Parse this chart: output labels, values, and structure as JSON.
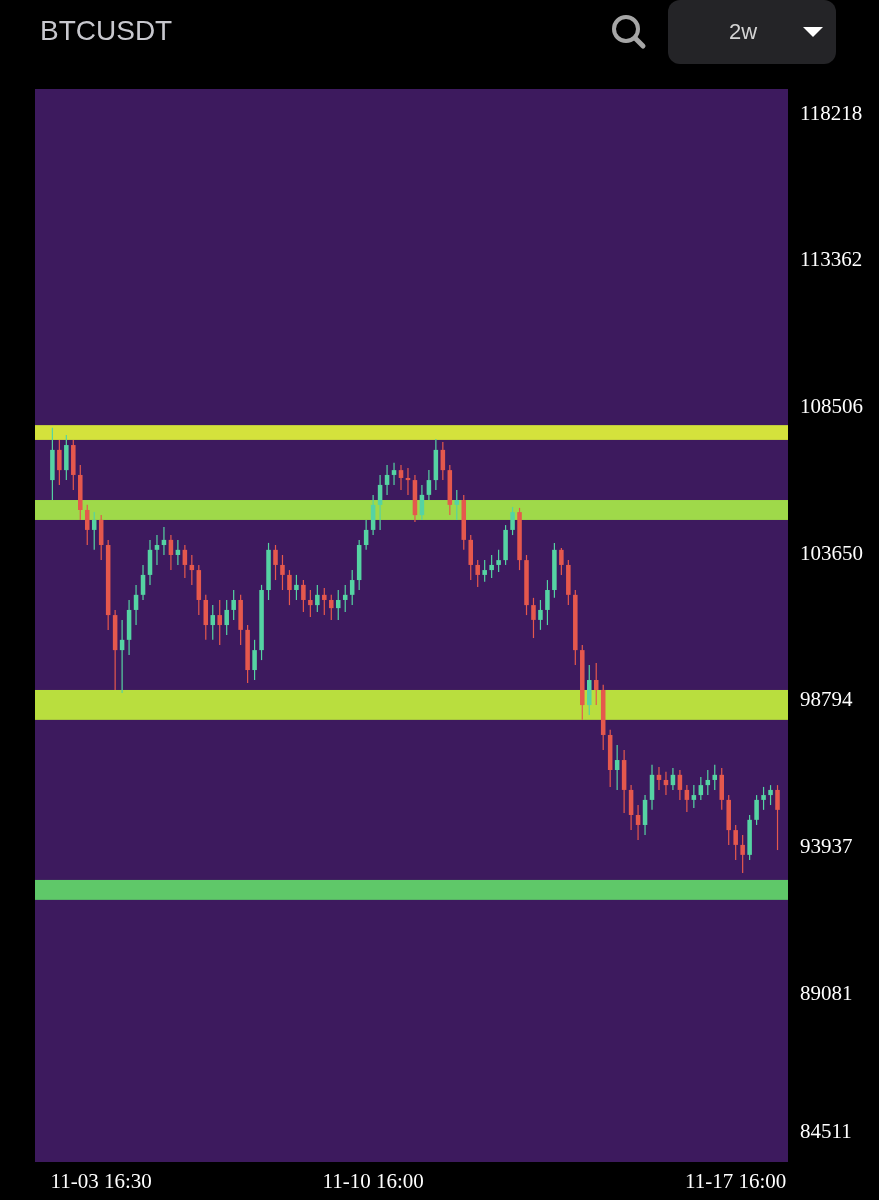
{
  "chart_data": {
    "type": "candlestick",
    "title": "BTCUSDT",
    "annotations": [
      "2w"
    ],
    "categories": [
      null,
      null,
      null,
      null,
      null,
      null,
      null,
      "11-03 16:30",
      null,
      null,
      null,
      null,
      null,
      null,
      null,
      null,
      null,
      null,
      null,
      null,
      null,
      null,
      null,
      null,
      null,
      null,
      null,
      null,
      null,
      null,
      null,
      null,
      null,
      null,
      null,
      null,
      null,
      null,
      null,
      null,
      null,
      null,
      null,
      null,
      null,
      null,
      "11-10 16:00",
      null,
      null,
      null,
      null,
      null,
      null,
      null,
      null,
      null,
      null,
      null,
      null,
      null,
      null,
      null,
      null,
      null,
      null,
      null,
      null,
      null,
      null,
      null,
      null,
      null,
      null,
      null,
      null,
      null,
      null,
      null,
      null,
      null,
      null,
      null,
      null,
      null,
      null,
      null,
      null,
      null,
      null,
      null,
      null,
      null,
      null,
      null,
      null,
      null,
      null,
      null,
      "11-17 16:00",
      null,
      null,
      null,
      null,
      null,
      null
    ],
    "ohlc": [
      [
        106130,
        107860,
        105470,
        107130
      ],
      [
        107130,
        107460,
        105970,
        106460
      ],
      [
        106460,
        107620,
        106130,
        107290
      ],
      [
        107290,
        107460,
        105800,
        106300
      ],
      [
        106300,
        106630,
        104810,
        105140
      ],
      [
        105140,
        105310,
        103980,
        104480
      ],
      [
        104480,
        105070,
        103820,
        104810
      ],
      [
        104810,
        104970,
        103480,
        103980
      ],
      [
        103980,
        104150,
        101170,
        101660
      ],
      [
        101660,
        101830,
        99180,
        100500
      ],
      [
        100500,
        101500,
        99080,
        100840
      ],
      [
        100840,
        102160,
        100340,
        101830
      ],
      [
        101830,
        102660,
        101330,
        102330
      ],
      [
        102330,
        103320,
        102160,
        102990
      ],
      [
        102990,
        104150,
        102660,
        103820
      ],
      [
        103820,
        104310,
        103320,
        103980
      ],
      [
        103980,
        104580,
        103650,
        104150
      ],
      [
        104150,
        104310,
        103150,
        103650
      ],
      [
        103650,
        104150,
        103320,
        103820
      ],
      [
        103820,
        103980,
        102890,
        103320
      ],
      [
        103320,
        103650,
        102660,
        103150
      ],
      [
        103150,
        103320,
        101660,
        102160
      ],
      [
        102160,
        102330,
        100840,
        101330
      ],
      [
        101330,
        101990,
        100840,
        101660
      ],
      [
        101660,
        102160,
        100670,
        101330
      ],
      [
        101330,
        102160,
        101000,
        101830
      ],
      [
        101830,
        102490,
        101500,
        102160
      ],
      [
        102160,
        102330,
        100670,
        101170
      ],
      [
        101170,
        101330,
        99410,
        99840
      ],
      [
        99840,
        100840,
        99510,
        100500
      ],
      [
        100500,
        102660,
        100170,
        102490
      ],
      [
        102490,
        104050,
        102160,
        103820
      ],
      [
        103820,
        103980,
        102820,
        103320
      ],
      [
        103320,
        103650,
        102490,
        102990
      ],
      [
        102990,
        103150,
        101990,
        102490
      ],
      [
        102490,
        102990,
        102160,
        102660
      ],
      [
        102660,
        102820,
        101760,
        102160
      ],
      [
        102160,
        102490,
        101600,
        101990
      ],
      [
        101990,
        102660,
        101760,
        102330
      ],
      [
        102330,
        102560,
        101660,
        102160
      ],
      [
        102160,
        102330,
        101500,
        101890
      ],
      [
        101890,
        102490,
        101500,
        102160
      ],
      [
        102160,
        102660,
        101760,
        102330
      ],
      [
        102330,
        103150,
        101990,
        102820
      ],
      [
        102820,
        104150,
        102490,
        103980
      ],
      [
        103980,
        104810,
        103820,
        104480
      ],
      [
        104480,
        105640,
        104310,
        105310
      ],
      [
        105310,
        106300,
        104480,
        105970
      ],
      [
        105970,
        106630,
        105640,
        106300
      ],
      [
        106300,
        106700,
        105970,
        106460
      ],
      [
        106460,
        106630,
        105800,
        106200
      ],
      [
        106200,
        106530,
        105640,
        106130
      ],
      [
        106130,
        106300,
        104740,
        104970
      ],
      [
        104970,
        105970,
        104810,
        105640
      ],
      [
        105640,
        106460,
        105470,
        106130
      ],
      [
        106130,
        107490,
        105800,
        107130
      ],
      [
        107130,
        107390,
        106130,
        106460
      ],
      [
        106460,
        106630,
        104970,
        105310
      ],
      [
        105310,
        105800,
        104810,
        105470
      ],
      [
        105470,
        105640,
        103820,
        104150
      ],
      [
        104150,
        104310,
        102820,
        103320
      ],
      [
        103320,
        103480,
        102590,
        102990
      ],
      [
        102990,
        103480,
        102760,
        103150
      ],
      [
        103150,
        103650,
        102890,
        103320
      ],
      [
        103320,
        103820,
        103090,
        103480
      ],
      [
        103480,
        104640,
        103320,
        104480
      ],
      [
        104480,
        105240,
        104310,
        105070
      ],
      [
        105070,
        105210,
        103150,
        103480
      ],
      [
        103480,
        103650,
        101660,
        101990
      ],
      [
        101990,
        102230,
        100900,
        101500
      ],
      [
        101500,
        102160,
        101170,
        101830
      ],
      [
        101830,
        102820,
        101330,
        102490
      ],
      [
        102490,
        104050,
        102230,
        103820
      ],
      [
        103820,
        103880,
        102990,
        103320
      ],
      [
        103320,
        103480,
        101990,
        102330
      ],
      [
        102330,
        102490,
        100010,
        100500
      ],
      [
        100500,
        100670,
        98190,
        98680
      ],
      [
        98680,
        100010,
        98350,
        99510
      ],
      [
        99510,
        100070,
        98680,
        99180
      ],
      [
        99180,
        99350,
        97190,
        97690
      ],
      [
        97690,
        97860,
        95970,
        96530
      ],
      [
        96530,
        97360,
        95870,
        96860
      ],
      [
        96860,
        97190,
        95110,
        95870
      ],
      [
        95870,
        96030,
        94540,
        95040
      ],
      [
        95040,
        95370,
        94210,
        94710
      ],
      [
        94710,
        95700,
        94380,
        95540
      ],
      [
        95540,
        96700,
        95210,
        96370
      ],
      [
        96370,
        96630,
        95870,
        96200
      ],
      [
        96200,
        96470,
        95700,
        96030
      ],
      [
        96030,
        96600,
        95870,
        96370
      ],
      [
        96370,
        96530,
        95540,
        95870
      ],
      [
        95870,
        96030,
        95140,
        95540
      ],
      [
        95540,
        96030,
        95270,
        95700
      ],
      [
        95700,
        96300,
        95540,
        96030
      ],
      [
        96030,
        96530,
        95700,
        96200
      ],
      [
        96200,
        96700,
        95870,
        96370
      ],
      [
        96370,
        96600,
        95210,
        95540
      ],
      [
        95540,
        95700,
        94050,
        94540
      ],
      [
        94540,
        94710,
        93550,
        94050
      ],
      [
        94050,
        94380,
        93120,
        93720
      ],
      [
        93720,
        95040,
        93550,
        94880
      ],
      [
        94880,
        95700,
        94710,
        95540
      ],
      [
        95540,
        95970,
        95210,
        95700
      ],
      [
        95700,
        96030,
        95370,
        95870
      ],
      [
        95870,
        96030,
        93880,
        95210
      ]
    ],
    "ylim": [
      83550,
      119080
    ],
    "yticks": [
      118218,
      113362,
      108506,
      103650,
      98794,
      93937,
      89081,
      84511
    ],
    "bands": [
      {
        "axis": "y",
        "from": 107460,
        "to": 107950,
        "color": "#d4e23c"
      },
      {
        "axis": "y",
        "from": 104810,
        "to": 105470,
        "color": "#9fd94a"
      },
      {
        "axis": "y",
        "from": 98190,
        "to": 99180,
        "color": "#b9de3e"
      },
      {
        "axis": "y",
        "from": 92230,
        "to": 92890,
        "color": "#5fc869"
      }
    ]
  }
}
